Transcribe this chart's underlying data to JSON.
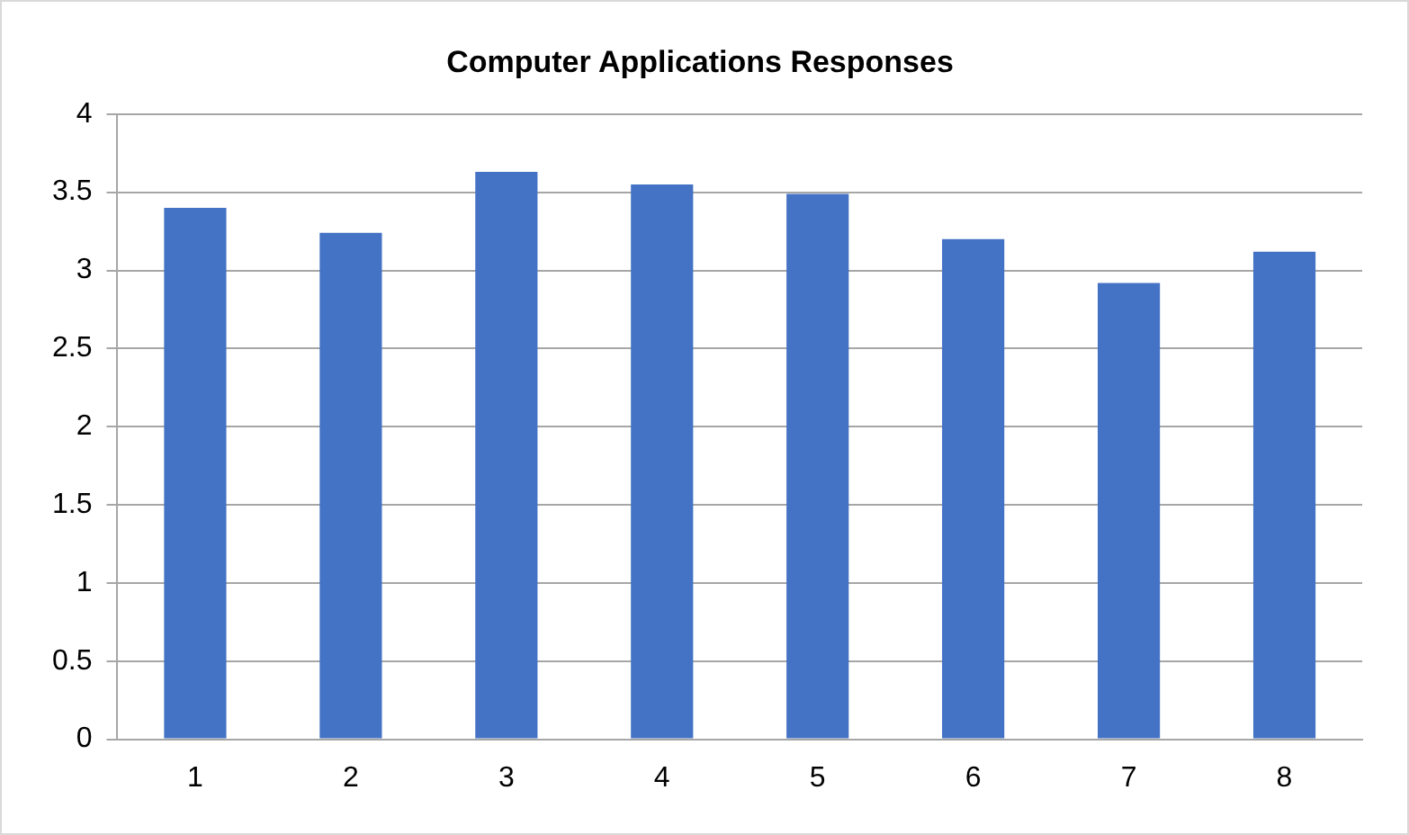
{
  "chart_data": {
    "type": "bar",
    "title": "Computer Applications Responses",
    "categories": [
      "1",
      "2",
      "3",
      "4",
      "5",
      "6",
      "7",
      "8"
    ],
    "values": [
      3.4,
      3.24,
      3.63,
      3.55,
      3.49,
      3.2,
      2.92,
      3.12
    ],
    "color": "#4472c4",
    "ylim": [
      0,
      4
    ],
    "yticks": [
      0,
      0.5,
      1,
      1.5,
      2,
      2.5,
      3,
      3.5,
      4
    ],
    "grid": "y",
    "legend": false
  }
}
